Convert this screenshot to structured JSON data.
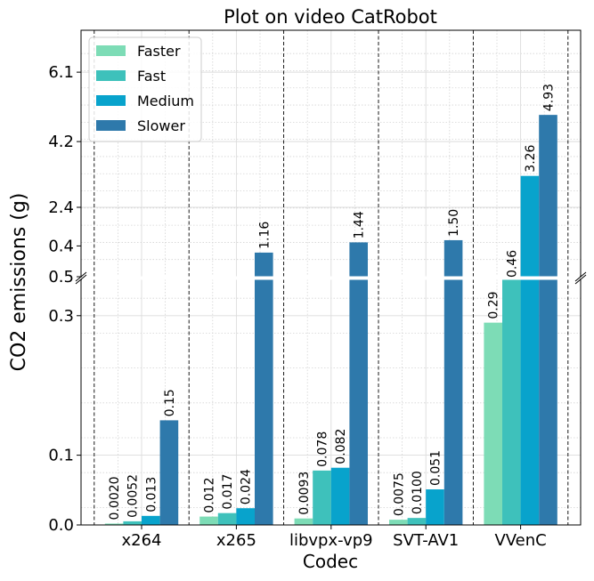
{
  "chart_data": {
    "type": "bar",
    "title": "Plot on video CatRobot",
    "xlabel": "Codec",
    "ylabel": "CO2 emissions (g)",
    "categories": [
      "x264",
      "x265",
      "libvpx-vp9",
      "SVT-AV1",
      "VVenC"
    ],
    "series": [
      {
        "name": "Faster",
        "color": "#7ddcb6",
        "values": [
          0.002,
          0.012,
          0.0093,
          0.0075,
          0.29
        ],
        "labels": [
          "0.0020",
          "0.012",
          "0.0093",
          "0.0075",
          "0.29"
        ]
      },
      {
        "name": "Fast",
        "color": "#3ec1bb",
        "values": [
          0.0052,
          0.017,
          0.078,
          0.01,
          0.46
        ],
        "labels": [
          "0.0052",
          "0.017",
          "0.078",
          "0.0100",
          "0.46"
        ]
      },
      {
        "name": "Medium",
        "color": "#08a3cc",
        "values": [
          0.013,
          0.024,
          0.082,
          0.051,
          3.26
        ],
        "labels": [
          "0.013",
          "0.024",
          "0.082",
          "0.051",
          "3.26"
        ]
      },
      {
        "name": "Slower",
        "color": "#2e79ab",
        "values": [
          0.15,
          1.16,
          1.44,
          1.5,
          4.93
        ],
        "labels": [
          "0.15",
          "1.16",
          "1.44",
          "1.50",
          "4.93"
        ]
      }
    ],
    "broken_axis": {
      "lower_ylim": [
        0,
        0.5
      ],
      "upper_ylim": [
        0.5,
        7
      ],
      "lower_ticks": [
        "0.0",
        "0.1",
        "0.3",
        "0.4"
      ],
      "lower_tick_values": [
        0.0,
        0.1,
        0.3,
        0.4
      ],
      "upper_ticks": [
        "0.5",
        "2.4",
        "4.2",
        "6.1"
      ],
      "upper_tick_values": [
        0.5,
        2.4,
        4.2,
        6.1
      ]
    },
    "grid": true,
    "legend_position": "top-left"
  }
}
